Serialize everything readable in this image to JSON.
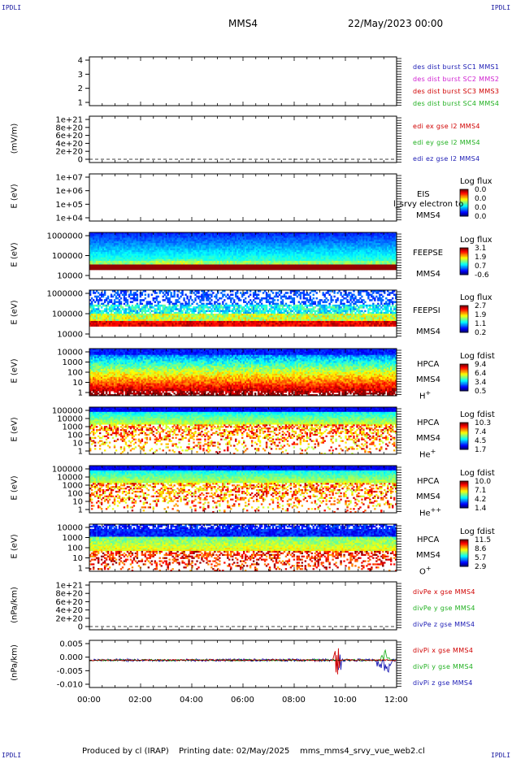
{
  "header": {
    "corner_left_top": "IPDLI",
    "corner_right_top": "IPDLI",
    "corner_left_bottom": "IPDLI",
    "corner_right_bottom": "IPDLI",
    "spacecraft": "MMS4",
    "date": "22/May/2023 00:00"
  },
  "footer": {
    "produced": "Produced by cl (IRAP)",
    "printing": "Printing date: 02/May/2025",
    "file": "mms_mms4_srvy_vue_web2.cl"
  },
  "colors": {
    "blue": "#1a1ab4",
    "magenta": "#d020d0",
    "red": "#d00000",
    "green": "#20b020"
  },
  "chart_data": {
    "type": "line",
    "x_ticks": [
      "00:00",
      "02:00",
      "04:00",
      "06:00",
      "08:00",
      "10:00",
      "12:00"
    ],
    "panels": [
      {
        "id": "burst",
        "ylabel": "",
        "y_ticks": [
          "4",
          "3",
          "2",
          "1"
        ],
        "legend": [
          {
            "text": "des dist burst SC1 MMS1",
            "color": "#1a1ab4"
          },
          {
            "text": "des dist burst SC2 MMS2",
            "color": "#d020d0"
          },
          {
            "text": "des dist burst SC3 MMS3",
            "color": "#d00000"
          },
          {
            "text": "des dist burst SC4 MMS4",
            "color": "#20b020"
          }
        ]
      },
      {
        "id": "edi",
        "ylabel": "(mV/m)",
        "y_ticks": [
          "1e+21",
          "8e+20",
          "6e+20",
          "4e+20",
          "2e+20",
          "0"
        ],
        "legend": [
          {
            "text": "edi ex gse l2 MMS4",
            "color": "#d00000"
          },
          {
            "text": "edi ey gse l2 MMS4",
            "color": "#20b020"
          },
          {
            "text": "edi ez gse l2 MMS4",
            "color": "#1a1ab4"
          }
        ]
      },
      {
        "id": "eis",
        "ylabel": "E (eV)",
        "y_ticks": [
          "1e+07",
          "1e+06",
          "1e+05",
          "1e+04"
        ],
        "inst": [
          "EIS",
          "MMS4"
        ],
        "overlay": "l_srvy electron to",
        "cb_title": "Log flux",
        "cb_values": [
          "0.0",
          "0.0",
          "0.0",
          "0.0"
        ]
      },
      {
        "id": "feepse",
        "ylabel": "E (eV)",
        "y_ticks": [
          "1000000",
          "100000",
          "10000"
        ],
        "inst": [
          "FEEPSE",
          "MMS4"
        ],
        "cb_title": "Log flux",
        "cb_values": [
          "3.1",
          "1.9",
          "0.7",
          "-0.6"
        ]
      },
      {
        "id": "feepsi",
        "ylabel": "E (eV)",
        "y_ticks": [
          "1000000",
          "100000",
          "10000"
        ],
        "inst": [
          "FEEPSI",
          "MMS4"
        ],
        "cb_title": "Log flux",
        "cb_values": [
          "2.7",
          "1.9",
          "1.1",
          "0.2"
        ]
      },
      {
        "id": "hpca_h",
        "ylabel": "E (eV)",
        "y_ticks": [
          "10000",
          "1000",
          "100",
          "10",
          "1"
        ],
        "inst": [
          "HPCA",
          "MMS4"
        ],
        "species": "H",
        "species_sup": "+",
        "cb_title": "Log fdist",
        "cb_values": [
          "9.4",
          "6.4",
          "3.4",
          "0.5"
        ]
      },
      {
        "id": "hpca_he",
        "ylabel": "E (eV)",
        "y_ticks": [
          "100000",
          "10000",
          "1000",
          "100",
          "10",
          "1"
        ],
        "inst": [
          "HPCA",
          "MMS4"
        ],
        "species": "He",
        "species_sup": "+",
        "cb_title": "Log fdist",
        "cb_values": [
          "10.3",
          "7.4",
          "4.5",
          "1.7"
        ]
      },
      {
        "id": "hpca_hepp",
        "ylabel": "E (eV)",
        "y_ticks": [
          "100000",
          "10000",
          "1000",
          "100",
          "10",
          "1"
        ],
        "inst": [
          "HPCA",
          "MMS4"
        ],
        "species": "He",
        "species_sup": "++",
        "cb_title": "Log fdist",
        "cb_values": [
          "10.0",
          "7.1",
          "4.2",
          "1.4"
        ]
      },
      {
        "id": "hpca_o",
        "ylabel": "E (eV)",
        "y_ticks": [
          "10000",
          "1000",
          "100",
          "10",
          "1"
        ],
        "inst": [
          "HPCA",
          "MMS4"
        ],
        "species": "O",
        "species_sup": "+",
        "cb_title": "Log fdist",
        "cb_values": [
          "11.5",
          "8.6",
          "5.7",
          "2.9"
        ]
      },
      {
        "id": "divpe",
        "ylabel": "(nPa/km)",
        "y_ticks": [
          "1e+21",
          "8e+20",
          "6e+20",
          "4e+20",
          "2e+20",
          "0"
        ],
        "legend": [
          {
            "text": "divPe x gse MMS4",
            "color": "#d00000"
          },
          {
            "text": "divPe y gse MMS4",
            "color": "#20b020"
          },
          {
            "text": "divPe z gse MMS4",
            "color": "#1a1ab4"
          }
        ]
      },
      {
        "id": "divpi",
        "ylabel": "(nPa/km)",
        "y_ticks": [
          "0.005",
          "0.000",
          "-0.005",
          "-0.010"
        ],
        "legend": [
          {
            "text": "divPi x gse MMS4",
            "color": "#d00000"
          },
          {
            "text": "divPi y gse MMS4",
            "color": "#20b020"
          },
          {
            "text": "divPi z gse MMS4",
            "color": "#1a1ab4"
          }
        ]
      }
    ]
  }
}
